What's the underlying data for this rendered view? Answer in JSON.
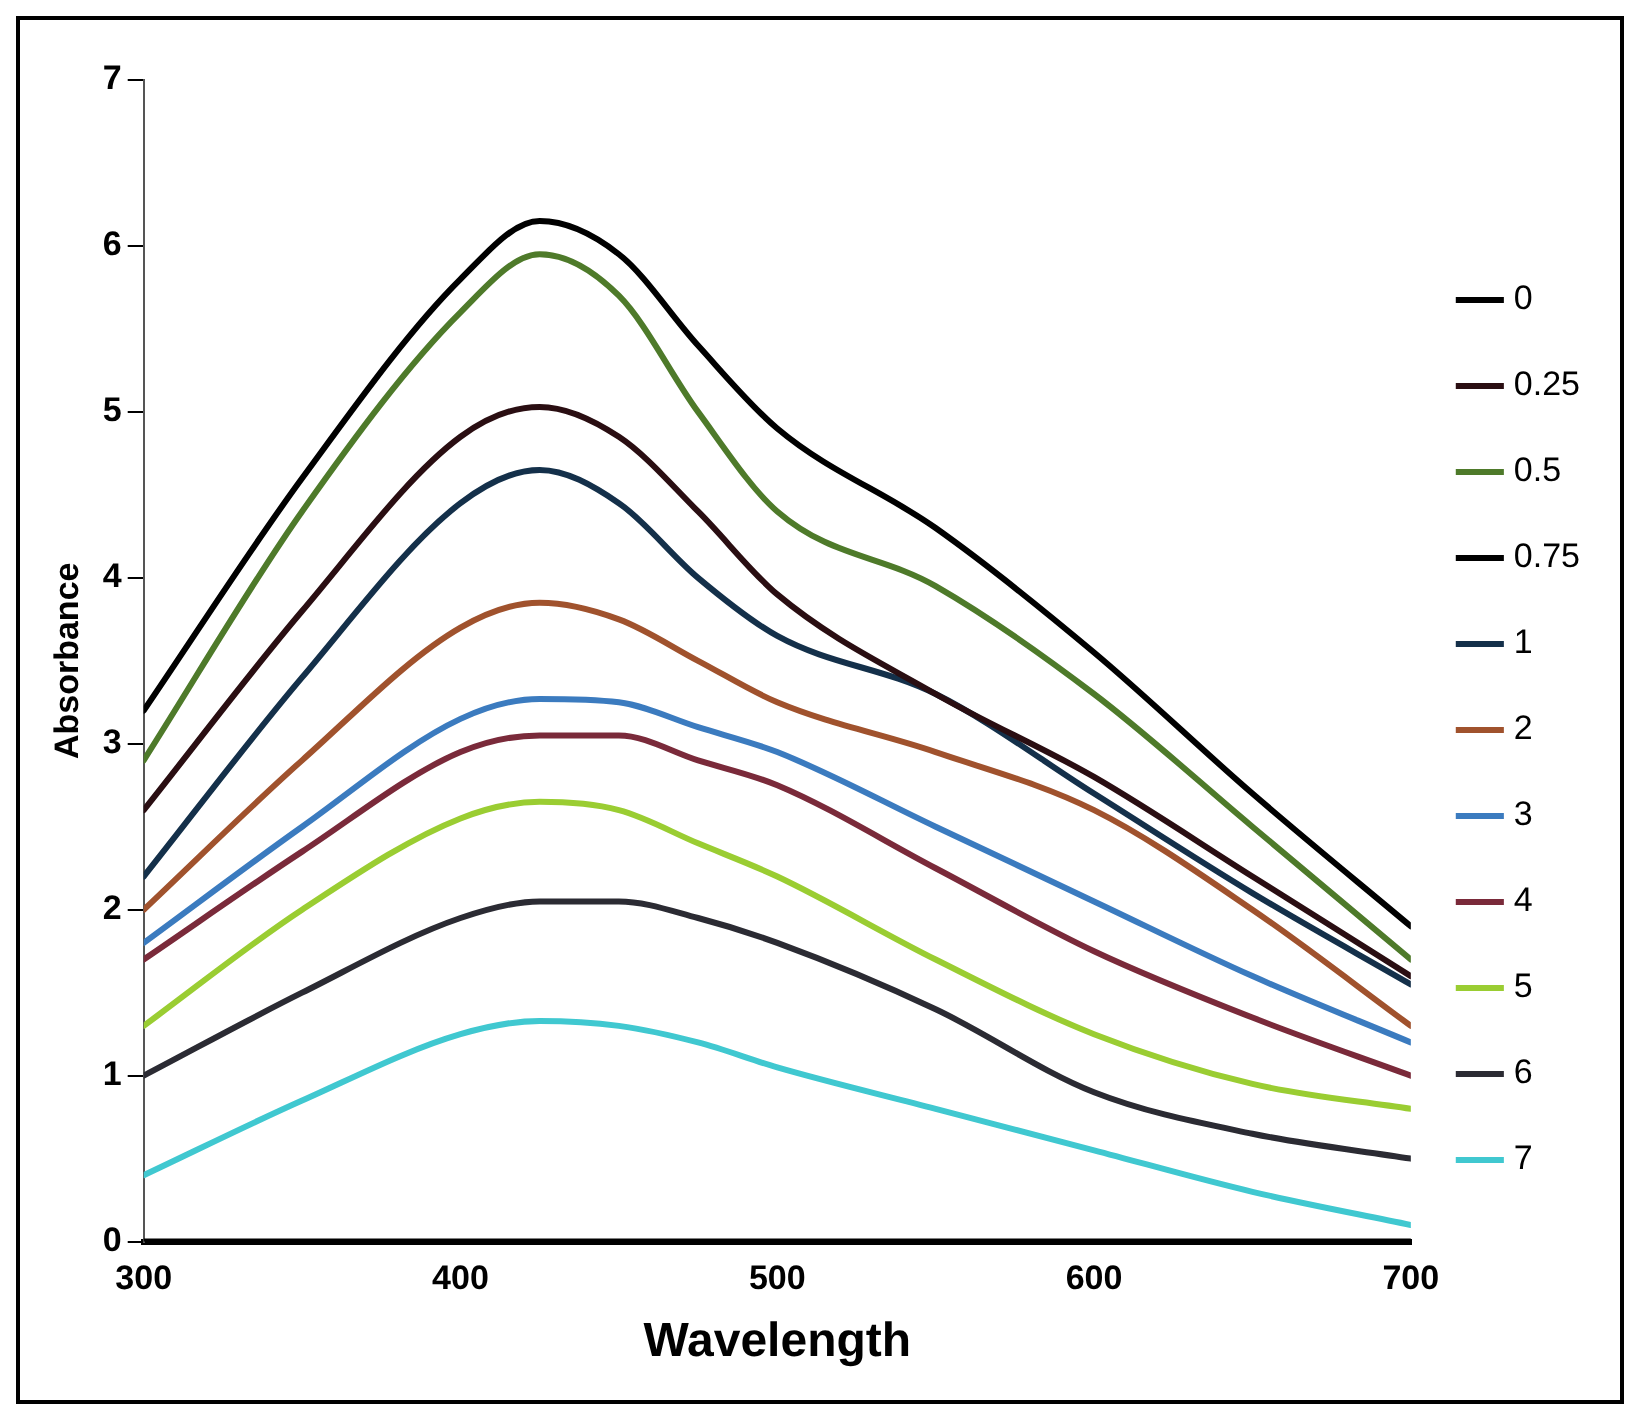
{
  "chart_data": {
    "type": "line",
    "xlabel": "Wavelength",
    "ylabel": "Absorbance",
    "x": [
      300,
      350,
      400,
      425,
      450,
      475,
      500,
      550,
      600,
      650,
      700
    ],
    "xlim": [
      300,
      700
    ],
    "xticks": [
      300,
      400,
      500,
      600,
      700
    ],
    "ylim": [
      0,
      7
    ],
    "yticks": [
      0,
      1,
      2,
      3,
      4,
      5,
      6,
      7
    ],
    "grid": false,
    "legend": "right",
    "marker": "none",
    "line_style": "solid",
    "series": [
      {
        "name": "0",
        "color": "#000000",
        "values": [
          0,
          0,
          0,
          0,
          0,
          0,
          0,
          0,
          0,
          0,
          0
        ]
      },
      {
        "name": "0.25",
        "color": "#2a0e12",
        "values": [
          2.6,
          3.8,
          4.85,
          5.03,
          4.85,
          4.4,
          3.9,
          3.3,
          2.8,
          2.2,
          1.6
        ]
      },
      {
        "name": "0.5",
        "color": "#4e7a2a",
        "values": [
          2.9,
          4.4,
          5.6,
          5.95,
          5.7,
          5.0,
          4.4,
          3.95,
          3.3,
          2.5,
          1.7
        ]
      },
      {
        "name": "0.75",
        "color": "#000000",
        "values": [
          3.2,
          4.6,
          5.8,
          6.15,
          5.95,
          5.4,
          4.9,
          4.3,
          3.55,
          2.7,
          1.9
        ]
      },
      {
        "name": "1",
        "color": "#14304a",
        "values": [
          2.2,
          3.4,
          4.45,
          4.65,
          4.45,
          4.0,
          3.65,
          3.3,
          2.7,
          2.1,
          1.55
        ]
      },
      {
        "name": "2",
        "color": "#a0522d",
        "values": [
          2.0,
          2.9,
          3.7,
          3.85,
          3.75,
          3.5,
          3.25,
          2.95,
          2.6,
          2.0,
          1.3
        ]
      },
      {
        "name": "3",
        "color": "#3b7bbf",
        "values": [
          1.8,
          2.5,
          3.15,
          3.27,
          3.25,
          3.1,
          2.95,
          2.5,
          2.05,
          1.6,
          1.2
        ]
      },
      {
        "name": "4",
        "color": "#7a2a3a",
        "values": [
          1.7,
          2.35,
          2.95,
          3.05,
          3.05,
          2.9,
          2.75,
          2.25,
          1.75,
          1.35,
          1.0
        ]
      },
      {
        "name": "5",
        "color": "#9acd32",
        "values": [
          1.3,
          2.0,
          2.55,
          2.65,
          2.6,
          2.4,
          2.2,
          1.7,
          1.25,
          0.95,
          0.8
        ]
      },
      {
        "name": "6",
        "color": "#2b2b33",
        "values": [
          1.0,
          1.5,
          1.95,
          2.05,
          2.05,
          1.95,
          1.8,
          1.4,
          0.9,
          0.65,
          0.5
        ]
      },
      {
        "name": "7",
        "color": "#40c8d0",
        "values": [
          0.4,
          0.85,
          1.25,
          1.33,
          1.3,
          1.2,
          1.05,
          0.8,
          0.55,
          0.3,
          0.1
        ]
      }
    ]
  }
}
